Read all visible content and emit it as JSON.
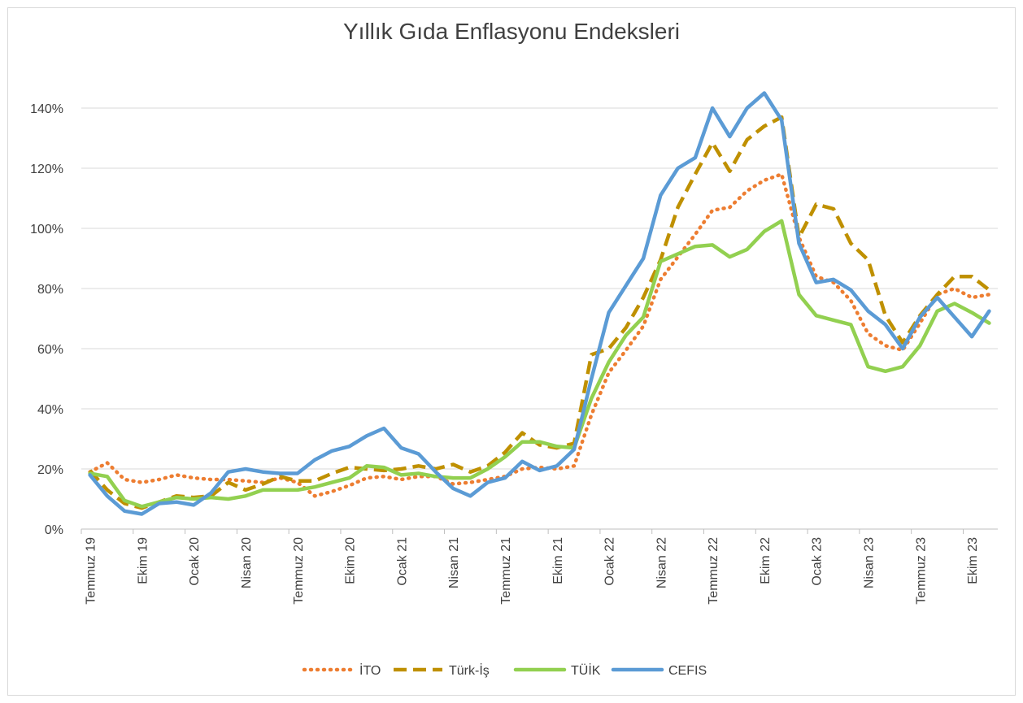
{
  "chart_data": {
    "type": "line",
    "title": "Yıllık Gıda Enflasyonu Endeksleri",
    "categories": [
      "Temmuz 19",
      null,
      null,
      "Ekim 19",
      null,
      null,
      "Ocak 20",
      null,
      null,
      "Nisan 20",
      null,
      null,
      "Temmuz 20",
      null,
      null,
      "Ekim 20",
      null,
      null,
      "Ocak 21",
      null,
      null,
      "Nisan 21",
      null,
      null,
      "Temmuz 21",
      null,
      null,
      "Ekim 21",
      null,
      null,
      "Ocak 22",
      null,
      null,
      "Nisan 22",
      null,
      null,
      "Temmuz 22",
      null,
      null,
      "Ekim 22",
      null,
      null,
      "Ocak 23",
      null,
      null,
      "Nisan 23",
      null,
      null,
      "Temmuz 23",
      null,
      null,
      "Ekim 23",
      null
    ],
    "series": [
      {
        "name": "İTO",
        "color": "#ed7d31",
        "dash": "dotted",
        "values": [
          19,
          22,
          16.5,
          15.5,
          16.5,
          18,
          17,
          16.5,
          16.5,
          16,
          15.5,
          17,
          15.5,
          11,
          12.5,
          14.5,
          17,
          17.5,
          16.5,
          17.5,
          17.5,
          15,
          15.5,
          16.5,
          17.5,
          20,
          20.5,
          20,
          21,
          38,
          52,
          59.5,
          67.5,
          83,
          90.5,
          98,
          106,
          107,
          112.5,
          116,
          118,
          97,
          84,
          82,
          76,
          65,
          61,
          59.5,
          68.5,
          78,
          80,
          77,
          78
        ]
      },
      {
        "name": "Türk-İş",
        "color": "#bf9000",
        "dash": "dashed",
        "values": [
          19.5,
          13,
          8.5,
          7,
          9,
          11,
          10.5,
          11,
          15.5,
          13,
          15,
          17.5,
          16,
          16,
          18.5,
          20.5,
          20,
          19.5,
          20,
          21,
          20,
          21.5,
          19,
          21,
          25.5,
          32,
          28,
          27,
          28.5,
          58,
          60,
          67,
          77,
          89.5,
          107,
          118,
          128.5,
          119,
          129.5,
          134,
          137,
          97,
          108,
          106.5,
          95,
          89.5,
          71,
          62,
          71,
          78,
          84,
          84,
          79.5
        ]
      },
      {
        "name": "TÜİK",
        "color": "#92d050",
        "dash": "solid",
        "values": [
          18.5,
          17.5,
          9.5,
          7.5,
          9,
          10.5,
          10,
          10.5,
          10,
          11,
          13,
          13,
          13,
          14,
          15.5,
          17,
          21,
          20.5,
          18,
          18.5,
          17.5,
          17,
          17,
          20,
          24,
          29,
          29,
          27.5,
          27,
          43.5,
          55.5,
          64.5,
          70.5,
          89,
          91.5,
          94,
          94.5,
          90.5,
          93,
          99,
          102.5,
          78,
          71,
          69.5,
          68,
          54,
          52.5,
          54,
          61,
          72.5,
          75,
          72,
          68.5
        ]
      },
      {
        "name": "CEFIS",
        "color": "#5b9bd5",
        "dash": "solid",
        "values": [
          18,
          11,
          6,
          5,
          8.5,
          9,
          8,
          12,
          19,
          20,
          19,
          18.5,
          18.5,
          23,
          26,
          27.5,
          31,
          33.5,
          27,
          25,
          19,
          13.5,
          11,
          15.5,
          17,
          22.5,
          19.5,
          21,
          26.5,
          50,
          72,
          81,
          90,
          111,
          120,
          123.5,
          140,
          130.5,
          140,
          145,
          136,
          95,
          82,
          83,
          79.5,
          72.5,
          68,
          60,
          70.5,
          77,
          70.5,
          64,
          72.5
        ]
      }
    ],
    "ylim": [
      0,
      150
    ],
    "yticks": [
      {
        "value": 0,
        "label": "0%"
      },
      {
        "value": 20,
        "label": "20%"
      },
      {
        "value": 40,
        "label": "40%"
      },
      {
        "value": 60,
        "label": "60%"
      },
      {
        "value": 80,
        "label": "80%"
      },
      {
        "value": 100,
        "label": "100%"
      },
      {
        "value": 120,
        "label": "120%"
      },
      {
        "value": 140,
        "label": "140%"
      }
    ],
    "grid": true,
    "legend": "bottom"
  }
}
